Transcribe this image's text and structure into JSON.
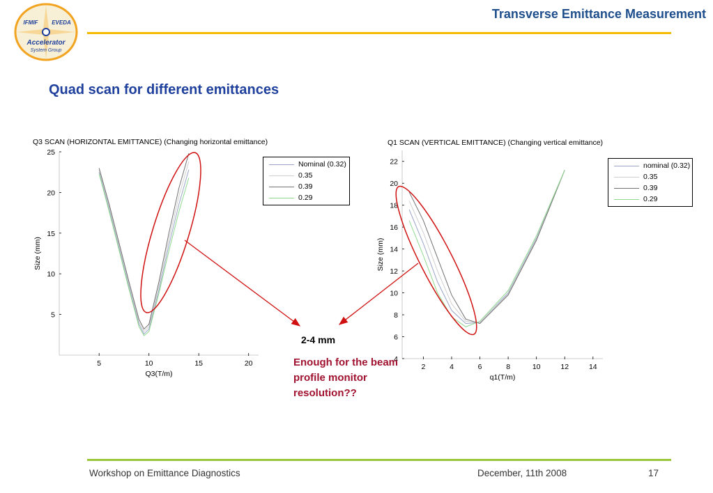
{
  "header": {
    "title": "Transverse Emittance Measurement",
    "logo": {
      "text_top_left": "IFMIF",
      "text_top_right": "EVEDA",
      "text_main": "Accelerator",
      "text_sub": "System Group"
    }
  },
  "slide_title": "Quad scan for different emittances",
  "annotation": {
    "range_label": "2-4 mm",
    "question": "Enough for the beam profile monitor resolution??",
    "arrow_color": "#d01010",
    "ellipse_color": "#d01010"
  },
  "footer": {
    "left": "Workshop on Emittance Diagnostics",
    "date": "December, 11th 2008",
    "page": "17"
  },
  "chart_data": [
    {
      "type": "line",
      "title": "Q3 SCAN (HORIZONTAL EMITTANCE) (Changing horizontal emittance)",
      "xlabel": "Q3(T/m)",
      "ylabel": "Size (mm)",
      "xlim": [
        1,
        21
      ],
      "ylim": [
        0,
        25
      ],
      "xticks": [
        5,
        10,
        15,
        20
      ],
      "yticks": [
        5,
        10,
        15,
        20,
        25
      ],
      "legend_position": "top-right",
      "grid": false,
      "series": [
        {
          "name": "Nominal (0.32)",
          "color": "#9aa4c8",
          "x": [
            5,
            6,
            7,
            8,
            9,
            9.5,
            10,
            11,
            12,
            13,
            14
          ],
          "y": [
            22.5,
            18.0,
            13.2,
            8.4,
            3.8,
            2.6,
            3.2,
            8.0,
            13.5,
            18.5,
            22.8
          ]
        },
        {
          "name": "0.35",
          "color": "#cfcfcf",
          "x": [
            5,
            6,
            7,
            8,
            9,
            9.5,
            10,
            11,
            12,
            13,
            14
          ],
          "y": [
            22.8,
            18.3,
            13.5,
            8.7,
            4.1,
            2.9,
            3.5,
            8.5,
            14.2,
            19.5,
            23.8
          ]
        },
        {
          "name": "0.39",
          "color": "#707070",
          "x": [
            5,
            6,
            7,
            8,
            9,
            9.5,
            10,
            11,
            12,
            13,
            14
          ],
          "y": [
            23.0,
            18.6,
            13.8,
            9.0,
            4.4,
            3.2,
            3.8,
            9.0,
            15.0,
            20.5,
            24.8
          ]
        },
        {
          "name": "0.29",
          "color": "#8fd98f",
          "x": [
            5,
            6,
            7,
            8,
            9,
            9.5,
            10,
            11,
            12,
            13,
            14
          ],
          "y": [
            22.3,
            17.7,
            12.9,
            8.1,
            3.5,
            2.4,
            2.9,
            7.6,
            12.8,
            17.6,
            21.8
          ]
        }
      ]
    },
    {
      "type": "line",
      "title": "Q1 SCAN (VERTICAL EMITTANCE) (Changing vertical emittance)",
      "xlabel": "q1(T/m)",
      "ylabel": "Size (mm)",
      "xlim": [
        0.5,
        14.7
      ],
      "ylim": [
        4,
        23
      ],
      "xticks": [
        2,
        4,
        6,
        8,
        10,
        12,
        14
      ],
      "yticks": [
        4,
        6,
        8,
        10,
        12,
        14,
        16,
        18,
        20,
        22
      ],
      "legend_position": "top-right",
      "grid": false,
      "series": [
        {
          "name": "nominal (0.32)",
          "color": "#9aa4c8",
          "x": [
            1,
            2,
            3,
            4,
            5,
            6,
            8,
            10,
            12
          ],
          "y": [
            17.6,
            14.5,
            11.0,
            8.4,
            7.2,
            7.3,
            10.0,
            15.0,
            21.2
          ]
        },
        {
          "name": "0.35",
          "color": "#cfcfcf",
          "x": [
            1,
            2,
            3,
            4,
            5,
            6,
            8,
            10,
            12
          ],
          "y": [
            18.4,
            15.5,
            12.0,
            9.0,
            7.4,
            7.3,
            9.9,
            14.9,
            21.2
          ]
        },
        {
          "name": "0.39",
          "color": "#707070",
          "x": [
            1,
            2,
            3,
            4,
            5,
            6,
            8,
            10,
            12
          ],
          "y": [
            19.2,
            16.6,
            13.2,
            9.8,
            7.6,
            7.2,
            9.8,
            14.8,
            21.2
          ]
        },
        {
          "name": "0.29",
          "color": "#8fd98f",
          "x": [
            1,
            2,
            3,
            4,
            5,
            6,
            8,
            10,
            12
          ],
          "y": [
            16.6,
            13.4,
            10.0,
            7.8,
            6.9,
            7.4,
            10.2,
            15.2,
            21.2
          ]
        }
      ]
    }
  ]
}
